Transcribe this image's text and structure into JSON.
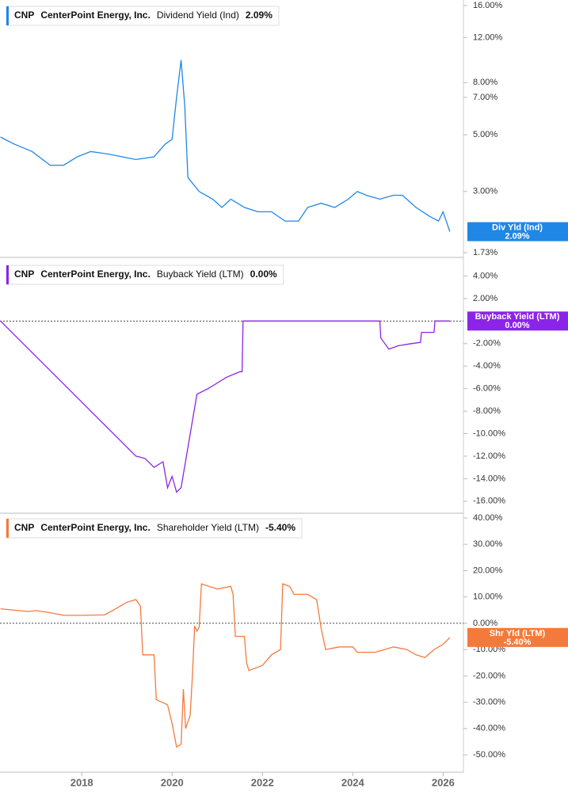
{
  "chart_data": [
    {
      "type": "line",
      "log_scale": true,
      "color": "#1f87e6",
      "header": {
        "ticker": "CNP",
        "company": "CenterPoint Energy, Inc.",
        "metric": "Dividend Yield (Ind)",
        "value_label": "2.09%"
      },
      "badge": {
        "name": "Div Yld (Ind)",
        "value_label": "2.09%"
      },
      "xlim": [
        2016.19,
        2026.45
      ],
      "x": [
        2016.2,
        2016.5,
        2016.9,
        2017.3,
        2017.6,
        2017.9,
        2018.2,
        2018.6,
        2018.9,
        2019.2,
        2019.6,
        2019.85,
        2020.0,
        2020.1,
        2020.2,
        2020.28,
        2020.35,
        2020.6,
        2020.9,
        2021.1,
        2021.3,
        2021.6,
        2021.9,
        2022.2,
        2022.5,
        2022.8,
        2023.0,
        2023.3,
        2023.6,
        2023.9,
        2024.1,
        2024.3,
        2024.6,
        2024.9,
        2025.1,
        2025.4,
        2025.7,
        2025.9,
        2026.0,
        2026.15
      ],
      "values": [
        4.9,
        4.6,
        4.3,
        3.8,
        3.8,
        4.1,
        4.3,
        4.2,
        4.1,
        4.0,
        4.1,
        4.6,
        4.8,
        7.0,
        9.8,
        6.5,
        3.4,
        3.0,
        2.8,
        2.6,
        2.8,
        2.6,
        2.5,
        2.5,
        2.3,
        2.3,
        2.6,
        2.7,
        2.6,
        2.8,
        3.0,
        2.9,
        2.8,
        2.9,
        2.9,
        2.6,
        2.4,
        2.3,
        2.5,
        2.09
      ],
      "ylim": [
        1.73,
        16
      ],
      "yticks": [
        {
          "value": 16,
          "label": "16.00%"
        },
        {
          "value": 12,
          "label": "12.00%"
        },
        {
          "value": 8,
          "label": "8.00%"
        },
        {
          "value": 7,
          "label": "7.00%"
        },
        {
          "value": 5,
          "label": "5.00%"
        },
        {
          "value": 3,
          "label": "3.00%"
        },
        {
          "value": 1.73,
          "label": "1.73%"
        }
      ]
    },
    {
      "type": "line",
      "color": "#8b24e8",
      "zero_line": true,
      "header": {
        "ticker": "CNP",
        "company": "CenterPoint Energy, Inc.",
        "metric": "Buyback Yield (LTM)",
        "value_label": "0.00%"
      },
      "badge": {
        "name": "Buyback Yield (LTM)",
        "value_label": "0.00%"
      },
      "xlim": [
        2016.19,
        2026.45
      ],
      "x": [
        2016.2,
        2019.2,
        2019.4,
        2019.6,
        2019.8,
        2019.9,
        2020.0,
        2020.1,
        2020.2,
        2020.55,
        2020.8,
        2021.0,
        2021.2,
        2021.5,
        2021.55,
        2021.57,
        2024.6,
        2024.62,
        2024.8,
        2025.0,
        2025.3,
        2025.5,
        2025.52,
        2025.8,
        2025.82,
        2026.15
      ],
      "values": [
        0,
        -12.0,
        -12.2,
        -13,
        -12.5,
        -14.8,
        -13.8,
        -15.2,
        -14.8,
        -6.5,
        -6.0,
        -5.5,
        -5.0,
        -4.5,
        -4.5,
        0,
        0,
        -1.5,
        -2.5,
        -2.2,
        -2.0,
        -1.9,
        -1.0,
        -1.0,
        0,
        0
      ],
      "ylim": [
        -17,
        5.3
      ],
      "yticks": [
        {
          "value": 4,
          "label": "4.00%"
        },
        {
          "value": 2,
          "label": "2.00%"
        },
        {
          "value": -2,
          "label": "-2.00%"
        },
        {
          "value": -4,
          "label": "-4.00%"
        },
        {
          "value": -6,
          "label": "-6.00%"
        },
        {
          "value": -8,
          "label": "-8.00%"
        },
        {
          "value": -10,
          "label": "-10.00%"
        },
        {
          "value": -12,
          "label": "-12.00%"
        },
        {
          "value": -14,
          "label": "-14.00%"
        },
        {
          "value": -16,
          "label": "-16.00%"
        }
      ]
    },
    {
      "type": "line",
      "color": "#f47a3c",
      "zero_line": true,
      "header": {
        "ticker": "CNP",
        "company": "CenterPoint Energy, Inc.",
        "metric": "Shareholder Yield (LTM)",
        "value_label": "-5.40%"
      },
      "badge": {
        "name": "Shr Yld (LTM)",
        "value_label": "-5.40%"
      },
      "xlim": [
        2016.19,
        2026.45
      ],
      "xticks": [
        2018,
        2020,
        2022,
        2024,
        2026
      ],
      "x": [
        2016.2,
        2016.8,
        2017.0,
        2017.3,
        2017.6,
        2018.0,
        2018.5,
        2018.7,
        2019.0,
        2019.2,
        2019.3,
        2019.35,
        2019.6,
        2019.65,
        2019.9,
        2020.0,
        2020.1,
        2020.2,
        2020.25,
        2020.3,
        2020.4,
        2020.45,
        2020.5,
        2020.55,
        2020.6,
        2020.65,
        2021.0,
        2021.3,
        2021.35,
        2021.4,
        2021.6,
        2021.65,
        2021.7,
        2022.0,
        2022.2,
        2022.4,
        2022.45,
        2022.6,
        2022.7,
        2023.0,
        2023.2,
        2023.3,
        2023.4,
        2023.7,
        2024.0,
        2024.1,
        2024.5,
        2024.9,
        2025.2,
        2025.4,
        2025.6,
        2025.8,
        2026.0,
        2026.15
      ],
      "values": [
        5.5,
        4.5,
        4.8,
        4.0,
        3,
        3,
        3.2,
        5,
        8,
        9,
        6.5,
        -12,
        -12,
        -29,
        -31,
        -38,
        -47,
        -46,
        -25,
        -40,
        -35,
        -20,
        -1,
        -3,
        -1.5,
        15,
        13,
        14,
        11,
        -5,
        -5,
        -15,
        -18,
        -16,
        -12,
        -10,
        15,
        14,
        11,
        11,
        9,
        -2,
        -10,
        -9,
        -9,
        -11,
        -11,
        -9,
        -10,
        -12,
        -13,
        -10,
        -8,
        -5.4
      ],
      "ylim": [
        -56.6,
        41.2
      ],
      "yticks": [
        {
          "value": 40,
          "label": "40.00%"
        },
        {
          "value": 30,
          "label": "30.00%"
        },
        {
          "value": 20,
          "label": "20.00%"
        },
        {
          "value": 10,
          "label": "10.00%"
        },
        {
          "value": 0,
          "label": "0.00%"
        },
        {
          "value": -10,
          "label": "-10.00%"
        },
        {
          "value": -20,
          "label": "-20.00%"
        },
        {
          "value": -30,
          "label": "-30.00%"
        },
        {
          "value": -40,
          "label": "-40.00%"
        },
        {
          "value": -50,
          "label": "-50.00%"
        }
      ]
    }
  ]
}
